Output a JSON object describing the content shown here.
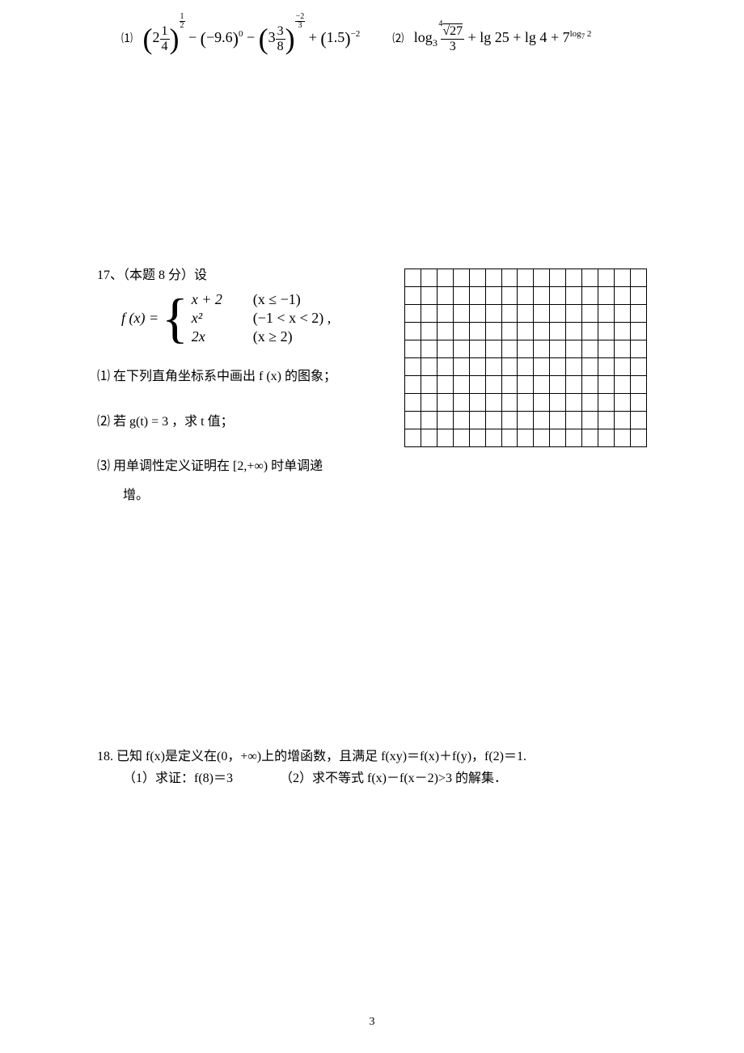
{
  "problem16": {
    "sub1_label": "⑴",
    "expr1": {
      "mixed1_whole": "2",
      "mixed1_num": "1",
      "mixed1_den": "4",
      "pow1_num": "1",
      "pow1_den": "2",
      "base2": "−9.6",
      "pow2": "0",
      "mixed3_whole": "3",
      "mixed3_num": "3",
      "mixed3_den": "8",
      "pow3_neg": "−",
      "pow3_num": "2",
      "pow3_den": "3",
      "base4": "1.5",
      "pow4": "−2"
    },
    "sub2_label": "⑵",
    "expr2": {
      "log_base": "3",
      "root_index": "4",
      "root_radicand": "27",
      "frac_den": "3",
      "lg1": "lg 25",
      "lg2": "lg 4",
      "seven_base": "7",
      "seven_exp_log": "log",
      "seven_exp_base": "7",
      "seven_exp_arg": "2"
    }
  },
  "problem17": {
    "header_num": "17、",
    "header_points": "（本题 8 分）设",
    "fx_label": "f (x) =",
    "pieces": [
      {
        "expr": "x + 2",
        "cond": "(x ≤ −1)"
      },
      {
        "expr": "x²",
        "cond": "(−1 < x < 2) ,"
      },
      {
        "expr": "2x",
        "cond": "(x ≥ 2)"
      }
    ],
    "q1": "⑴ 在下列直角坐标系中画出 f (x) 的图象；",
    "q2": "⑵ 若 g(t) = 3 ，求 t 值；",
    "q3_line1": "⑶ 用单调性定义证明在 [2,+∞) 时单调递",
    "q3_line2": "增。",
    "grid": {
      "cols": 15,
      "rows": 10,
      "cell_size": 22,
      "border_color": "#000000"
    }
  },
  "problem18": {
    "line1": "18. 已知 f(x)是定义在(0，+∞)上的增函数，且满足 f(xy)＝f(x)＋f(y)，f(2)＝1.",
    "sub1": "（1）求证：f(8)＝3",
    "sub2": "（2）求不等式 f(x)－f(x－2)>3 的解集．"
  },
  "page_number": "3",
  "colors": {
    "text": "#000000",
    "background": "#ffffff",
    "grid_border": "#000000"
  }
}
